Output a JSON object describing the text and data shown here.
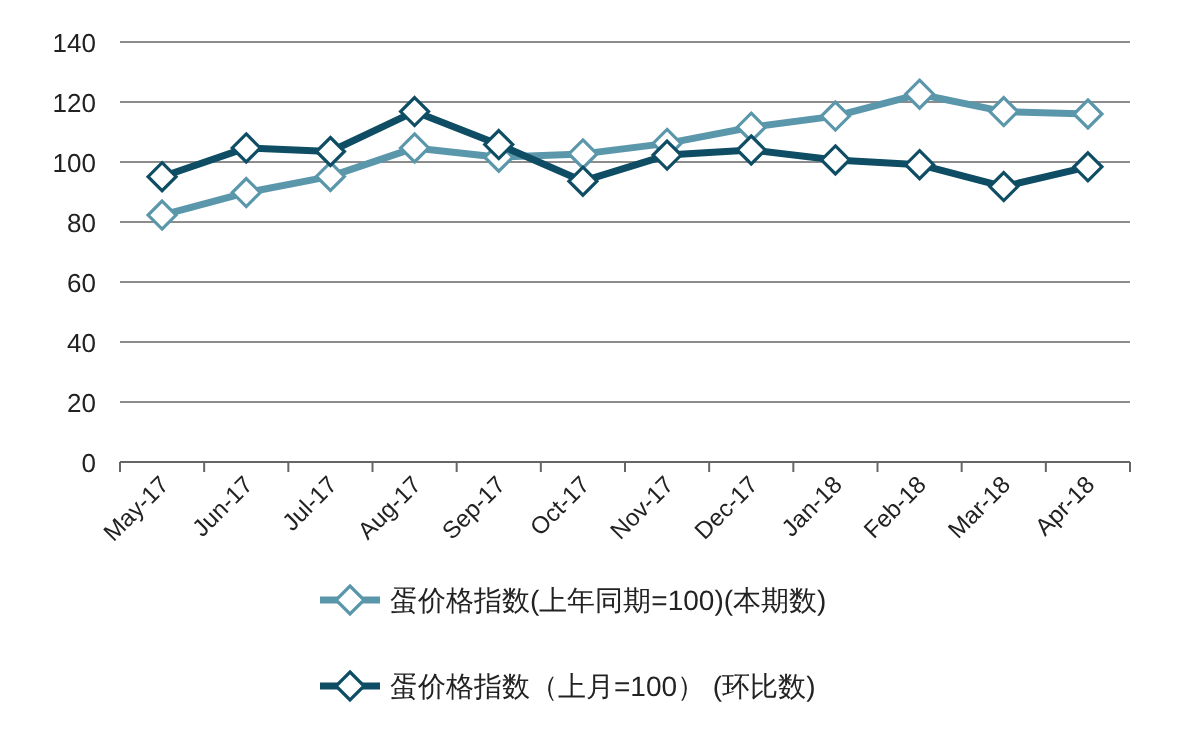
{
  "chart_data": {
    "type": "line",
    "categories": [
      "May-17",
      "Jun-17",
      "Jul-17",
      "Aug-17",
      "Sep-17",
      "Oct-17",
      "Nov-17",
      "Dec-17",
      "Jan-18",
      "Feb-18",
      "Mar-18",
      "Apr-18"
    ],
    "series": [
      {
        "name": "蛋价格指数(上年同期=100)(本期数)",
        "color": "#5b97ab",
        "values": [
          82.3,
          89.8,
          95.2,
          104.7,
          101.6,
          102.7,
          106.2,
          111.6,
          115.3,
          122.6,
          116.8,
          116.0
        ]
      },
      {
        "name": "蛋价格指数（上月=100）  (环比数)",
        "color": "#0e4d64",
        "values": [
          95.1,
          104.7,
          103.5,
          116.8,
          105.8,
          93.6,
          102.3,
          104.0,
          100.7,
          99.1,
          91.8,
          98.4
        ]
      }
    ],
    "ylim": [
      0,
      140
    ],
    "yticks": [
      0,
      20,
      40,
      60,
      80,
      100,
      120,
      140
    ],
    "grid": "y",
    "legend": "bottom",
    "marker": "diamond",
    "line_style": "solid"
  }
}
